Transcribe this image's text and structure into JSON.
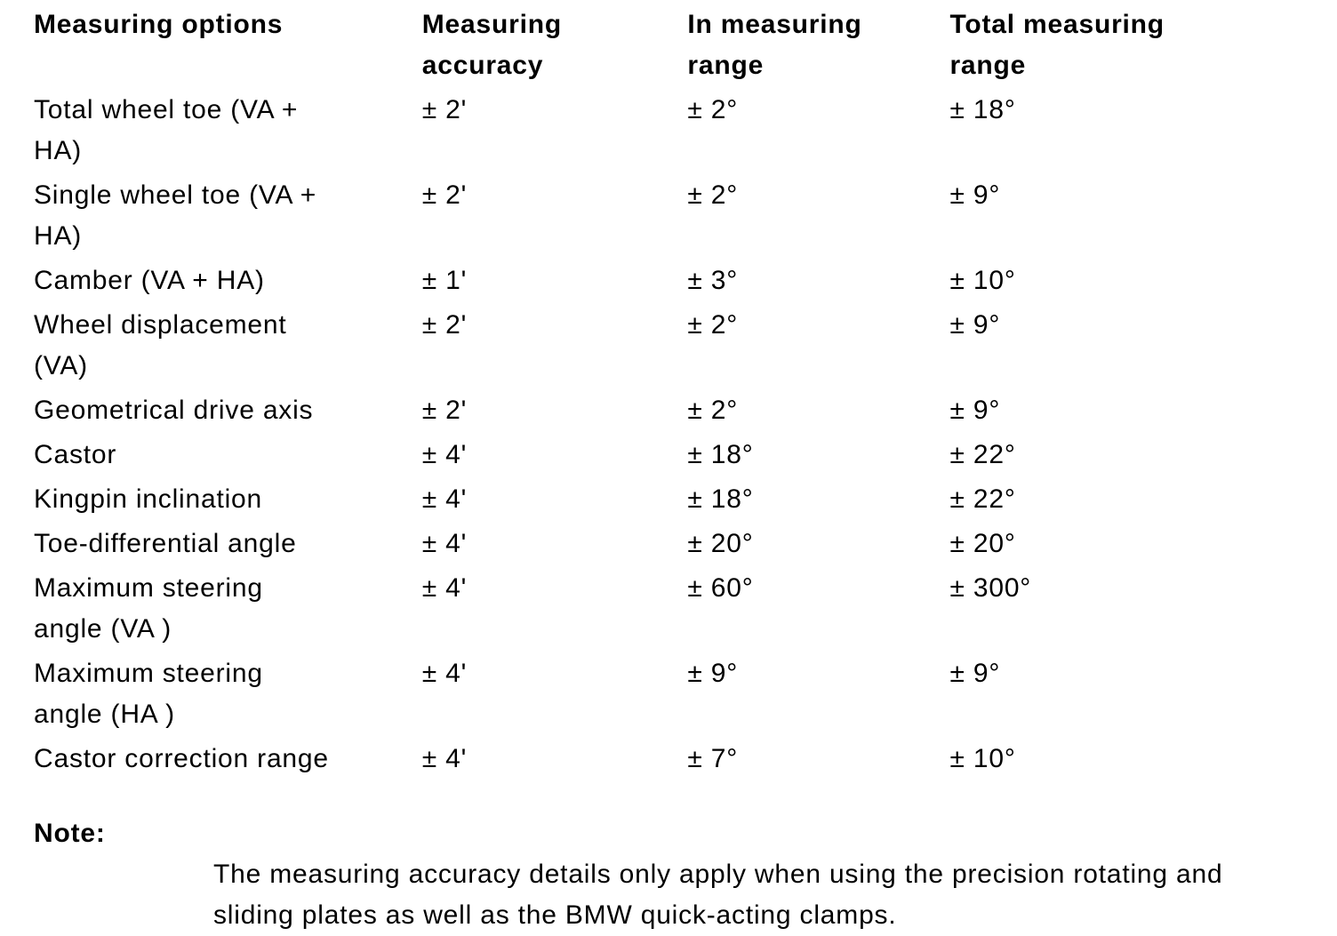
{
  "page": {
    "background": "#ffffff",
    "text_color": "#000000"
  },
  "table": {
    "headers": [
      "Measuring options",
      "Measuring\naccuracy",
      "In measuring\nrange",
      "Total measuring\nrange"
    ],
    "rows": [
      {
        "option": "Total wheel toe (VA +\nHA)",
        "accuracy": "± 2'",
        "in_range": "± 2°",
        "total_range": "± 18°"
      },
      {
        "option": "Single wheel toe (VA +\nHA)",
        "accuracy": "± 2'",
        "in_range": "± 2°",
        "total_range": "± 9°"
      },
      {
        "option": "Camber (VA + HA)",
        "accuracy": "± 1'",
        "in_range": "± 3°",
        "total_range": "± 10°"
      },
      {
        "option": "Wheel displacement\n(VA)",
        "accuracy": "± 2'",
        "in_range": "± 2°",
        "total_range": "± 9°"
      },
      {
        "option": "Geometrical drive axis",
        "accuracy": "± 2'",
        "in_range": "± 2°",
        "total_range": "± 9°"
      },
      {
        "option": "Castor",
        "accuracy": "± 4'",
        "in_range": "± 18°",
        "total_range": "± 22°"
      },
      {
        "option": "Kingpin inclination",
        "accuracy": "± 4'",
        "in_range": "± 18°",
        "total_range": "± 22°"
      },
      {
        "option": "Toe-differential angle",
        "accuracy": "± 4'",
        "in_range": "± 20°",
        "total_range": "± 20°"
      },
      {
        "option": "Maximum steering\nangle (VA )",
        "accuracy": "± 4'",
        "in_range": "± 60°",
        "total_range": "± 300°"
      },
      {
        "option": "Maximum steering\nangle (HA )",
        "accuracy": "± 4'",
        "in_range": "± 9°",
        "total_range": "± 9°"
      },
      {
        "option": "Castor correction range",
        "accuracy": "± 4'",
        "in_range": "± 7°",
        "total_range": "± 10°"
      }
    ]
  },
  "note": {
    "label": "Note:",
    "text": "The measuring accuracy details only apply when using the precision rotating and\nsliding plates as well as the BMW quick-acting clamps."
  }
}
